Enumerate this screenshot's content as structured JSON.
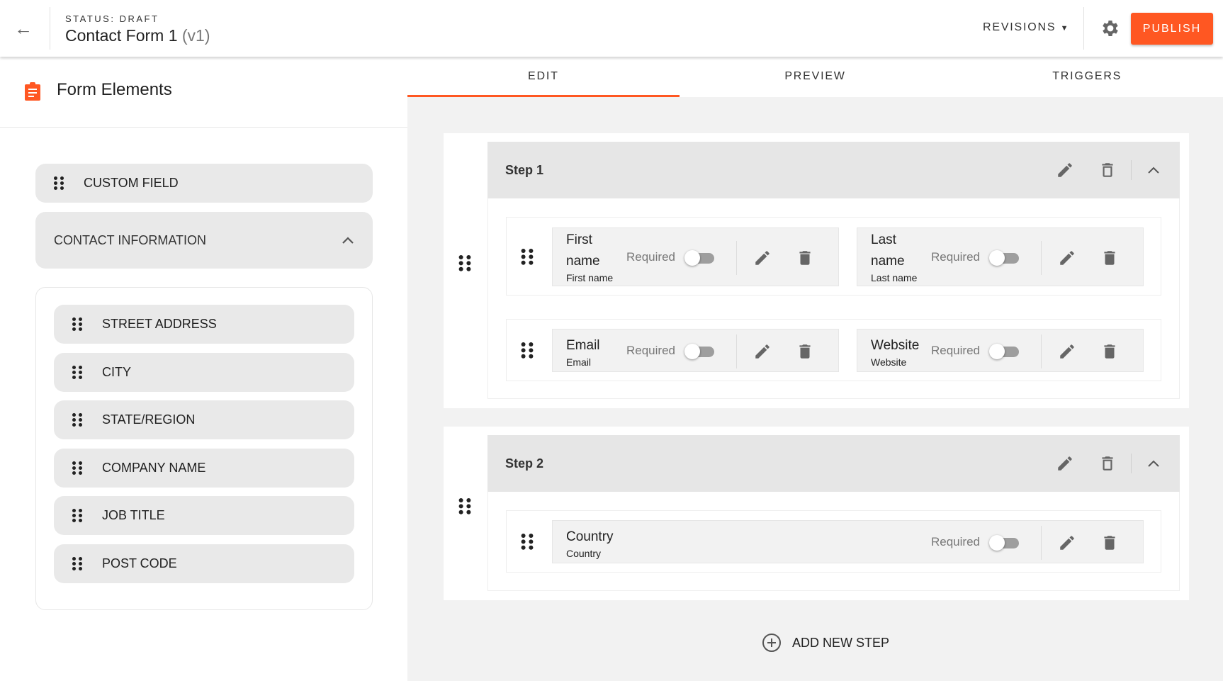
{
  "header": {
    "status": "STATUS: DRAFT",
    "title": "Contact Form 1",
    "version": "(v1)",
    "revisions_label": "REVISIONS",
    "publish_label": "PUBLISH",
    "accent_color": "#ff5722"
  },
  "sidebar": {
    "title": "Form Elements",
    "custom_field": "CUSTOM FIELD",
    "group_label": "CONTACT INFORMATION",
    "items": [
      "STREET ADDRESS",
      "CITY",
      "STATE/REGION",
      "COMPANY NAME",
      "JOB TITLE",
      "POST CODE"
    ]
  },
  "tabs": [
    {
      "label": "EDIT",
      "active": true
    },
    {
      "label": "PREVIEW",
      "active": false
    },
    {
      "label": "TRIGGERS",
      "active": false
    }
  ],
  "steps": [
    {
      "label": "Step 1",
      "rows": [
        [
          {
            "name": "First name",
            "sub": "First name",
            "required_label": "Required",
            "required": false
          },
          {
            "name": "Last name",
            "sub": "Last name",
            "required_label": "Required",
            "required": false
          }
        ],
        [
          {
            "name": "Email",
            "sub": "Email",
            "required_label": "Required",
            "required": false
          },
          {
            "name": "Website",
            "sub": "Website",
            "required_label": "Required",
            "required": false
          }
        ]
      ]
    },
    {
      "label": "Step 2",
      "rows": [
        [
          {
            "name": "Country",
            "sub": "Country",
            "required_label": "Required",
            "required": false
          }
        ]
      ]
    }
  ],
  "add_step_label": "ADD NEW STEP"
}
